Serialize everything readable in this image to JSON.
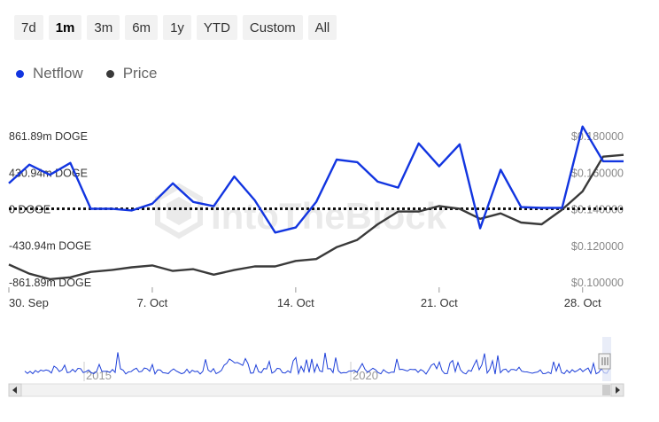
{
  "range_selector": {
    "buttons": [
      "7d",
      "1m",
      "3m",
      "6m",
      "1y",
      "YTD",
      "Custom",
      "All"
    ],
    "active": "1m"
  },
  "legend": [
    {
      "label": "Netflow",
      "color": "#1235e0"
    },
    {
      "label": "Price",
      "color": "#3a3a3a"
    }
  ],
  "chart_data": {
    "type": "line",
    "x": [
      "2024-09-30",
      "2024-10-01",
      "2024-10-02",
      "2024-10-03",
      "2024-10-04",
      "2024-10-05",
      "2024-10-06",
      "2024-10-07",
      "2024-10-08",
      "2024-10-09",
      "2024-10-10",
      "2024-10-11",
      "2024-10-12",
      "2024-10-13",
      "2024-10-14",
      "2024-10-15",
      "2024-10-16",
      "2024-10-17",
      "2024-10-18",
      "2024-10-19",
      "2024-10-20",
      "2024-10-21",
      "2024-10-22",
      "2024-10-23",
      "2024-10-24",
      "2024-10-25",
      "2024-10-26",
      "2024-10-27",
      "2024-10-28",
      "2024-10-29",
      "2024-10-30"
    ],
    "x_tick_labels": [
      "30. Sep",
      "7. Oct",
      "14. Oct",
      "21. Oct",
      "28. Oct"
    ],
    "series": [
      {
        "name": "Netflow",
        "axis": "left",
        "color": "#1235e0",
        "unit": "m DOGE",
        "values": [
          300,
          520,
          400,
          540,
          0,
          0,
          -20,
          60,
          300,
          80,
          30,
          380,
          100,
          -280,
          -220,
          80,
          580,
          550,
          320,
          250,
          770,
          500,
          760,
          -230,
          460,
          20,
          10,
          10,
          970,
          560,
          560
        ]
      },
      {
        "name": "Price",
        "axis": "right",
        "color": "#3a3a3a",
        "unit": "$",
        "values": [
          0.1095,
          0.1045,
          0.1015,
          0.1025,
          0.1055,
          0.1065,
          0.108,
          0.109,
          0.106,
          0.107,
          0.104,
          0.1065,
          0.1085,
          0.1085,
          0.1115,
          0.1125,
          0.119,
          0.123,
          0.1315,
          0.1385,
          0.1385,
          0.1415,
          0.14,
          0.1345,
          0.1375,
          0.1325,
          0.1315,
          0.1395,
          0.1495,
          0.1685,
          0.1695
        ]
      }
    ],
    "y_left": {
      "ticks": [
        861.89,
        430.94,
        0,
        -430.94,
        -861.89
      ],
      "tick_labels": [
        "861.89m DOGE",
        "430.94m DOGE",
        "0 DOGE",
        "-430.94m DOGE",
        "-861.89m DOGE"
      ],
      "range": [
        -861.89,
        861.89
      ]
    },
    "y_right": {
      "ticks": [
        0.18,
        0.16,
        0.14,
        0.12,
        0.1
      ],
      "tick_labels": [
        "$0.180000",
        "$0.160000",
        "$0.140000",
        "$0.120000",
        "$0.100000"
      ],
      "range": [
        0.1,
        0.18
      ]
    },
    "zero_line": "dotted",
    "watermark": "IntoTheBlock",
    "grid": false
  },
  "navigator": {
    "labels": [
      "2015",
      "2020"
    ]
  }
}
